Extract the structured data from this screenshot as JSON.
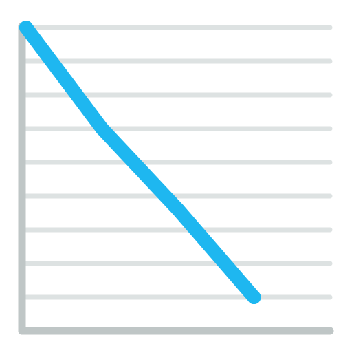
{
  "chart_data": {
    "type": "line",
    "x": [
      0,
      1,
      2,
      3
    ],
    "y": [
      9,
      6,
      3.6,
      1
    ],
    "xlim": [
      0,
      4
    ],
    "ylim": [
      0,
      9
    ],
    "grid": true,
    "grid_axis": "y",
    "legend": "none"
  },
  "colors": {
    "line": "#1EB7F0",
    "axis": "#BFC6C6",
    "grid": "#DDE2E2",
    "background": "#FFFFFF"
  }
}
